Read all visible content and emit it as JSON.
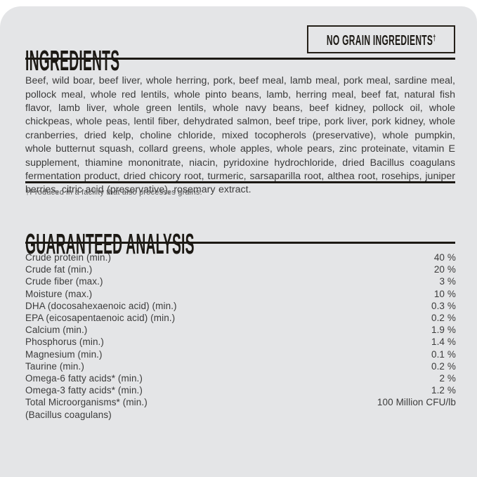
{
  "theme": {
    "page_bg": "#ffffff",
    "card_bg": "#e4e5e7",
    "ink": "#1c1914",
    "body_text": "#3b3b3b",
    "muted_text": "#565656"
  },
  "ingredients": {
    "title": "INGREDIENTS",
    "badge_label": "NO GRAIN INGREDIENTS",
    "badge_dagger": "†",
    "body": "Beef, wild boar, beef liver, whole herring, pork, beef meal, lamb meal, pork meal, sardine meal, pollock meal, whole red lentils, whole pinto beans, lamb, herring meal, beef fat, natural fish flavor, lamb liver, whole green lentils, whole navy beans, beef kidney, pollock oil, whole chickpeas, whole peas, lentil fiber, dehydrated salmon, beef tripe, pork liver, pork kidney, whole cranberries, dried kelp, choline chloride, mixed tocopherols (preservative), whole pumpkin, whole butternut squash, collard greens, whole apples, whole pears, zinc proteinate, vitamin E supplement, thiamine mononitrate, niacin, pyridoxine hydrochloride, dried Bacillus coagulans fermentation product, dried chicory root, turmeric, sarsaparilla root, althea root, rosehips, juniper berries, citric acid (preservative), rosemary extract.",
    "footnote": "†Produced in a facility that also processes grains."
  },
  "guaranteed_analysis": {
    "title": "GUARANTEED ANALYSIS",
    "rows": [
      {
        "label": "Crude protein (min.)",
        "value": "40 %"
      },
      {
        "label": "Crude fat (min.)",
        "value": "20 %"
      },
      {
        "label": "Crude fiber (max.)",
        "value": "3 %"
      },
      {
        "label": "Moisture (max.)",
        "value": "10 %"
      },
      {
        "label": "DHA (docosahexaenoic acid) (min.)",
        "value": "0.3 %"
      },
      {
        "label": "EPA (eicosapentaenoic acid) (min.)",
        "value": "0.2 %"
      },
      {
        "label": "Calcium (min.)",
        "value": "1.9 %"
      },
      {
        "label": "Phosphorus (min.)",
        "value": "1.4 %"
      },
      {
        "label": "Magnesium (min.)",
        "value": "0.1 %"
      },
      {
        "label": "Taurine (min.)",
        "value": "0.2 %"
      },
      {
        "label": "Omega-6 fatty acids* (min.)",
        "value": "2 %"
      },
      {
        "label": "Omega-3 fatty acids* (min.)",
        "value": "1.2 %"
      },
      {
        "label": "Total Microorganisms* (min.)",
        "value": "100 Million CFU/lb"
      },
      {
        "label": "(Bacillus coagulans)",
        "value": ""
      }
    ]
  }
}
